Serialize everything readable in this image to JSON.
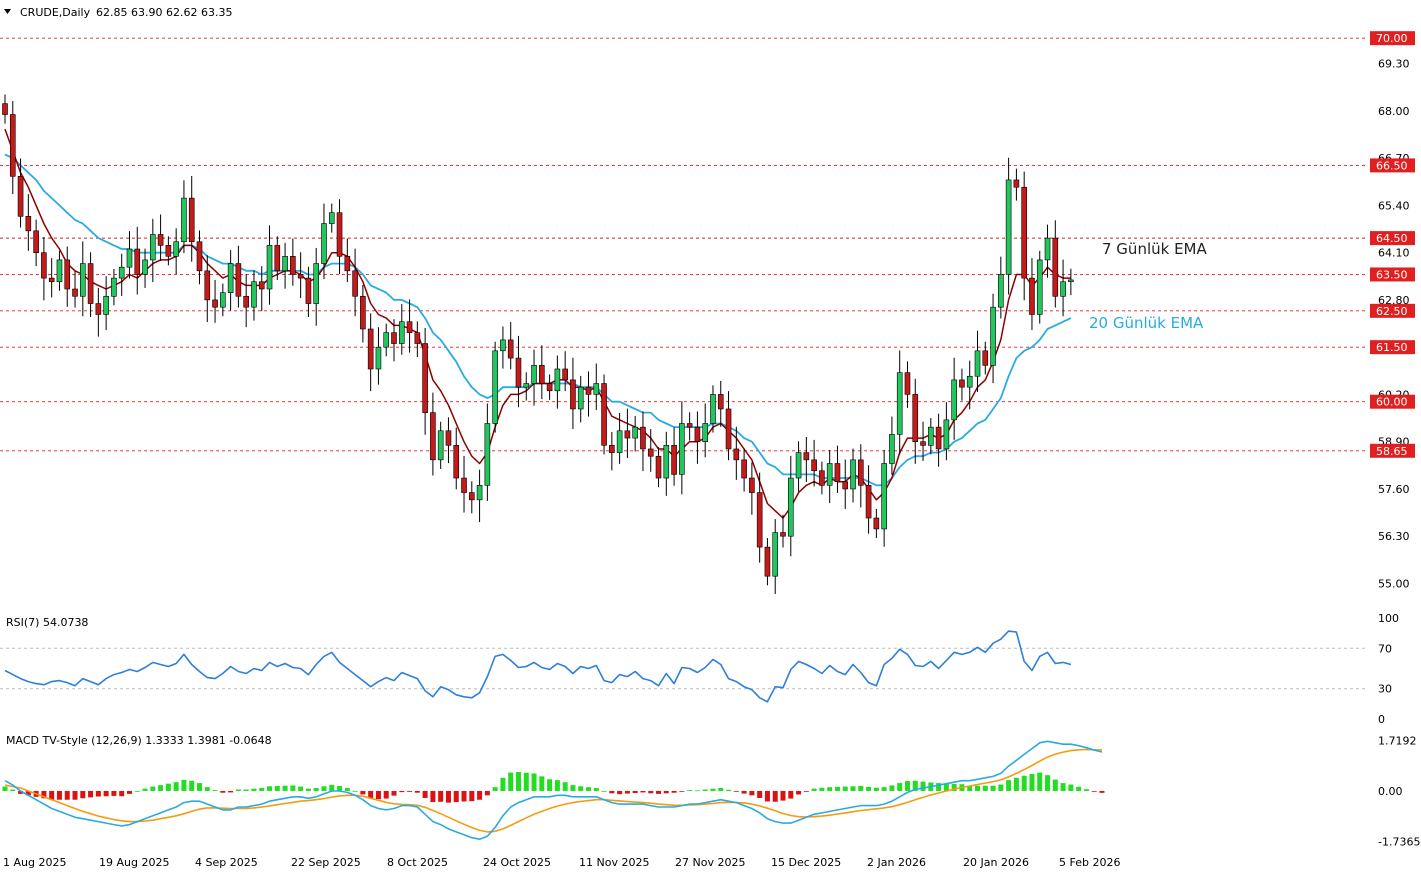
{
  "header": {
    "symbol_label": "CRUDE,Daily",
    "ohlc_text": "62.85 63.90 62.62 63.35"
  },
  "colors": {
    "bull": "#22c55e",
    "bear": "#c41a1a",
    "ema7": "#8b0000",
    "ema20": "#29abe2",
    "level_line": "#e02020",
    "rsi_line": "#2d7fd9",
    "macd_line": "#29abe2",
    "signal_line": "#f39c12",
    "hist_pos": "#22dd22",
    "hist_neg": "#dd1111"
  },
  "chart_data": [
    {
      "type": "candlestick",
      "title": "CRUDE,Daily",
      "ylim": [
        54.6,
        70.5
      ],
      "price_ticks": [
        "69.30",
        "68.00",
        "66.70",
        "65.40",
        "64.10",
        "62.80",
        "60.20",
        "58.90",
        "57.60",
        "56.30",
        "55.00"
      ],
      "levels": [
        {
          "label": "70.00",
          "value": 70.0
        },
        {
          "label": "66.50",
          "value": 66.5
        },
        {
          "label": "64.50",
          "value": 64.5
        },
        {
          "label": "63.50",
          "value": 63.5
        },
        {
          "label": "62.50",
          "value": 62.5
        },
        {
          "label": "61.50",
          "value": 61.5
        },
        {
          "label": "60.00",
          "value": 60.0
        },
        {
          "label": "58.65",
          "value": 58.65
        }
      ],
      "x_labels": [
        "1 Aug 2025",
        "19 Aug 2025",
        "4 Sep 2025",
        "22 Sep 2025",
        "8 Oct 2025",
        "24 Oct 2025",
        "11 Nov 2025",
        "27 Nov 2025",
        "15 Dec 2025",
        "2 Jan 2026",
        "20 Jan 2026",
        "5 Feb 2026"
      ],
      "annotations": [
        {
          "text": "7 Günlük EMA"
        },
        {
          "text": "20 Günlük EMA"
        }
      ],
      "closes": [
        67.9,
        66.2,
        65.1,
        64.7,
        64.1,
        63.4,
        63.3,
        63.9,
        63.1,
        62.9,
        63.8,
        62.7,
        62.4,
        62.9,
        63.4,
        63.7,
        64.2,
        63.5,
        63.9,
        64.6,
        64.3,
        64.0,
        64.4,
        65.6,
        64.4,
        63.6,
        62.8,
        62.6,
        63.0,
        63.8,
        62.9,
        62.6,
        63.3,
        63.1,
        64.3,
        63.6,
        64.0,
        63.5,
        63.4,
        62.7,
        63.8,
        64.9,
        65.2,
        64.0,
        63.6,
        62.9,
        62.0,
        60.9,
        61.5,
        61.9,
        61.6,
        62.2,
        61.9,
        61.6,
        59.7,
        58.4,
        59.2,
        58.8,
        57.9,
        57.5,
        57.3,
        57.7,
        59.4,
        61.4,
        61.7,
        61.2,
        60.4,
        60.5,
        61.0,
        60.5,
        60.3,
        60.9,
        60.6,
        59.8,
        60.4,
        60.2,
        60.5,
        58.8,
        58.6,
        59.2,
        59.0,
        59.3,
        58.7,
        58.5,
        57.9,
        58.8,
        58.0,
        59.4,
        59.3,
        58.9,
        59.4,
        60.2,
        59.8,
        58.7,
        58.4,
        57.9,
        57.5,
        56.0,
        55.2,
        56.4,
        56.3,
        57.9,
        58.6,
        58.4,
        58.1,
        57.7,
        58.3,
        57.8,
        57.6,
        58.4,
        57.7,
        56.8,
        56.5,
        58.3,
        59.1,
        60.8,
        60.2,
        58.9,
        58.8,
        59.3,
        58.7,
        59.5,
        60.6,
        60.4,
        60.7,
        61.4,
        61.0,
        62.6,
        63.5,
        66.1,
        65.9,
        63.4,
        62.4,
        63.9,
        64.5,
        62.9,
        63.3,
        63.35
      ],
      "ema7": [
        67.5,
        66.9,
        66.3,
        65.9,
        65.4,
        64.9,
        64.5,
        64.2,
        63.8,
        63.6,
        63.5,
        63.3,
        63.2,
        63.1,
        63.2,
        63.3,
        63.5,
        63.4,
        63.6,
        63.8,
        63.9,
        63.9,
        64.0,
        64.3,
        64.3,
        64.1,
        63.8,
        63.6,
        63.4,
        63.5,
        63.3,
        63.2,
        63.2,
        63.2,
        63.4,
        63.5,
        63.6,
        63.6,
        63.5,
        63.3,
        63.4,
        63.7,
        64.1,
        64.1,
        64.0,
        63.7,
        63.3,
        62.7,
        62.4,
        62.3,
        62.1,
        62.1,
        62.0,
        61.9,
        61.3,
        60.6,
        60.3,
        59.9,
        59.4,
        58.9,
        58.5,
        58.3,
        58.6,
        59.3,
        59.9,
        60.2,
        60.2,
        60.3,
        60.5,
        60.5,
        60.5,
        60.6,
        60.6,
        60.4,
        60.4,
        60.3,
        60.4,
        60.0,
        59.6,
        59.5,
        59.4,
        59.3,
        59.2,
        59.0,
        58.7,
        58.7,
        58.5,
        58.7,
        58.9,
        58.9,
        59.0,
        59.3,
        59.4,
        59.2,
        59.0,
        58.7,
        58.4,
        57.8,
        57.2,
        57.0,
        56.8,
        57.1,
        57.5,
        57.7,
        57.8,
        57.7,
        57.9,
        57.8,
        57.8,
        58.0,
        57.9,
        57.6,
        57.3,
        57.5,
        57.9,
        58.6,
        59.0,
        59.0,
        59.0,
        59.1,
        59.0,
        59.1,
        59.5,
        59.7,
        60.0,
        60.4,
        60.6,
        61.1,
        61.7,
        62.8,
        63.5,
        63.5,
        63.2,
        63.4,
        63.7,
        63.5,
        63.4,
        63.4
      ],
      "ema20": [
        66.8,
        66.7,
        66.5,
        66.3,
        66.1,
        65.8,
        65.6,
        65.4,
        65.2,
        65.0,
        64.9,
        64.7,
        64.5,
        64.4,
        64.3,
        64.2,
        64.2,
        64.1,
        64.1,
        64.1,
        64.1,
        64.1,
        64.1,
        64.3,
        64.3,
        64.2,
        64.0,
        63.9,
        63.8,
        63.8,
        63.7,
        63.6,
        63.6,
        63.5,
        63.6,
        63.6,
        63.6,
        63.6,
        63.6,
        63.5,
        63.5,
        63.7,
        63.8,
        63.8,
        63.8,
        63.7,
        63.5,
        63.2,
        63.1,
        63.0,
        62.8,
        62.8,
        62.7,
        62.6,
        62.3,
        61.9,
        61.7,
        61.4,
        61.1,
        60.7,
        60.4,
        60.2,
        60.1,
        60.2,
        60.4,
        60.4,
        60.4,
        60.4,
        60.5,
        60.5,
        60.5,
        60.5,
        60.5,
        60.5,
        60.4,
        60.4,
        60.4,
        60.2,
        60.0,
        60.0,
        59.9,
        59.8,
        59.7,
        59.7,
        59.5,
        59.4,
        59.3,
        59.3,
        59.3,
        59.3,
        59.3,
        59.4,
        59.4,
        59.3,
        59.2,
        59.0,
        58.9,
        58.6,
        58.3,
        58.2,
        58.0,
        58.0,
        58.0,
        58.0,
        58.0,
        57.9,
        57.9,
        57.9,
        57.9,
        57.9,
        57.9,
        57.8,
        57.7,
        57.7,
        57.9,
        58.2,
        58.4,
        58.5,
        58.5,
        58.6,
        58.6,
        58.7,
        58.9,
        59.0,
        59.2,
        59.4,
        59.5,
        59.8,
        60.1,
        60.7,
        61.2,
        61.4,
        61.5,
        61.7,
        62.0,
        62.1,
        62.2,
        62.3
      ]
    },
    {
      "type": "line",
      "title": "RSI(7) 54.0738",
      "ylim": [
        0,
        100
      ],
      "ticks": [
        "100",
        "70",
        "30",
        "0"
      ],
      "levels": [
        70,
        30
      ],
      "values": [
        48,
        44,
        40,
        37,
        35,
        34,
        37,
        38,
        36,
        33,
        40,
        37,
        34,
        40,
        44,
        46,
        49,
        47,
        51,
        56,
        54,
        52,
        55,
        64,
        54,
        47,
        41,
        40,
        45,
        52,
        47,
        45,
        50,
        48,
        56,
        52,
        55,
        51,
        50,
        44,
        54,
        62,
        66,
        56,
        50,
        44,
        38,
        32,
        37,
        41,
        38,
        46,
        43,
        40,
        28,
        22,
        32,
        29,
        24,
        22,
        21,
        26,
        42,
        62,
        64,
        58,
        51,
        52,
        56,
        51,
        49,
        55,
        52,
        45,
        52,
        50,
        53,
        38,
        36,
        44,
        42,
        47,
        40,
        38,
        33,
        45,
        35,
        51,
        50,
        46,
        51,
        59,
        54,
        40,
        37,
        32,
        29,
        21,
        17,
        32,
        31,
        49,
        57,
        54,
        50,
        45,
        53,
        47,
        44,
        54,
        46,
        36,
        33,
        54,
        60,
        69,
        64,
        53,
        52,
        57,
        50,
        58,
        66,
        64,
        66,
        71,
        66,
        75,
        79,
        87,
        86,
        57,
        48,
        62,
        66,
        55,
        56,
        54
      ]
    },
    {
      "type": "line",
      "title": "MACD TV-Style (12,26,9) 1.3333 1.3981 -0.0648",
      "ylim": [
        -1.85,
        1.95
      ],
      "ticks": [
        "1.7192",
        "0.00",
        "-1.7365"
      ],
      "series": [
        {
          "name": "MACD",
          "values": [
            0.35,
            0.2,
            0.0,
            -0.15,
            -0.3,
            -0.45,
            -0.6,
            -0.7,
            -0.8,
            -0.9,
            -0.95,
            -1.0,
            -1.05,
            -1.1,
            -1.15,
            -1.2,
            -1.15,
            -1.05,
            -0.95,
            -0.85,
            -0.75,
            -0.65,
            -0.55,
            -0.4,
            -0.35,
            -0.35,
            -0.45,
            -0.55,
            -0.65,
            -0.65,
            -0.55,
            -0.55,
            -0.5,
            -0.45,
            -0.35,
            -0.3,
            -0.25,
            -0.2,
            -0.2,
            -0.25,
            -0.2,
            -0.1,
            0.0,
            0.0,
            -0.05,
            -0.15,
            -0.3,
            -0.5,
            -0.6,
            -0.65,
            -0.6,
            -0.5,
            -0.5,
            -0.55,
            -0.8,
            -1.05,
            -1.15,
            -1.3,
            -1.4,
            -1.5,
            -1.6,
            -1.65,
            -1.55,
            -1.25,
            -0.85,
            -0.55,
            -0.4,
            -0.3,
            -0.2,
            -0.2,
            -0.2,
            -0.15,
            -0.15,
            -0.2,
            -0.2,
            -0.2,
            -0.2,
            -0.3,
            -0.4,
            -0.45,
            -0.45,
            -0.45,
            -0.45,
            -0.5,
            -0.55,
            -0.55,
            -0.55,
            -0.5,
            -0.45,
            -0.45,
            -0.4,
            -0.35,
            -0.3,
            -0.35,
            -0.4,
            -0.5,
            -0.6,
            -0.75,
            -0.95,
            -1.05,
            -1.1,
            -1.1,
            -1.0,
            -0.9,
            -0.8,
            -0.75,
            -0.7,
            -0.65,
            -0.6,
            -0.55,
            -0.5,
            -0.5,
            -0.5,
            -0.45,
            -0.35,
            -0.2,
            -0.05,
            0.05,
            0.1,
            0.15,
            0.2,
            0.25,
            0.3,
            0.35,
            0.35,
            0.4,
            0.45,
            0.5,
            0.6,
            0.85,
            1.05,
            1.25,
            1.45,
            1.65,
            1.7,
            1.65,
            1.6,
            1.6,
            1.55,
            1.48,
            1.4,
            1.3333
          ]
        },
        {
          "name": "Signal",
          "values": [
            0.2,
            0.15,
            0.1,
            0.0,
            -0.1,
            -0.2,
            -0.3,
            -0.4,
            -0.5,
            -0.6,
            -0.7,
            -0.78,
            -0.86,
            -0.92,
            -0.98,
            -1.02,
            -1.05,
            -1.05,
            -1.03,
            -1.0,
            -0.95,
            -0.9,
            -0.85,
            -0.78,
            -0.7,
            -0.62,
            -0.58,
            -0.58,
            -0.59,
            -0.6,
            -0.6,
            -0.6,
            -0.58,
            -0.55,
            -0.51,
            -0.47,
            -0.43,
            -0.39,
            -0.35,
            -0.33,
            -0.3,
            -0.26,
            -0.21,
            -0.17,
            -0.15,
            -0.15,
            -0.18,
            -0.25,
            -0.32,
            -0.39,
            -0.44,
            -0.46,
            -0.47,
            -0.49,
            -0.56,
            -0.67,
            -0.78,
            -0.9,
            -1.02,
            -1.14,
            -1.25,
            -1.35,
            -1.4,
            -1.38,
            -1.3,
            -1.18,
            -1.05,
            -0.92,
            -0.8,
            -0.7,
            -0.6,
            -0.52,
            -0.45,
            -0.4,
            -0.36,
            -0.33,
            -0.3,
            -0.3,
            -0.32,
            -0.34,
            -0.36,
            -0.38,
            -0.4,
            -0.42,
            -0.45,
            -0.47,
            -0.49,
            -0.49,
            -0.48,
            -0.47,
            -0.45,
            -0.43,
            -0.4,
            -0.39,
            -0.39,
            -0.41,
            -0.45,
            -0.51,
            -0.59,
            -0.68,
            -0.77,
            -0.84,
            -0.88,
            -0.89,
            -0.88,
            -0.86,
            -0.83,
            -0.79,
            -0.75,
            -0.71,
            -0.67,
            -0.64,
            -0.61,
            -0.58,
            -0.54,
            -0.47,
            -0.39,
            -0.3,
            -0.22,
            -0.14,
            -0.07,
            0.0,
            0.06,
            0.12,
            0.17,
            0.22,
            0.27,
            0.32,
            0.38,
            0.48,
            0.6,
            0.73,
            0.87,
            1.02,
            1.16,
            1.26,
            1.33,
            1.38,
            1.41,
            1.42,
            1.41,
            1.3981
          ]
        }
      ]
    }
  ]
}
